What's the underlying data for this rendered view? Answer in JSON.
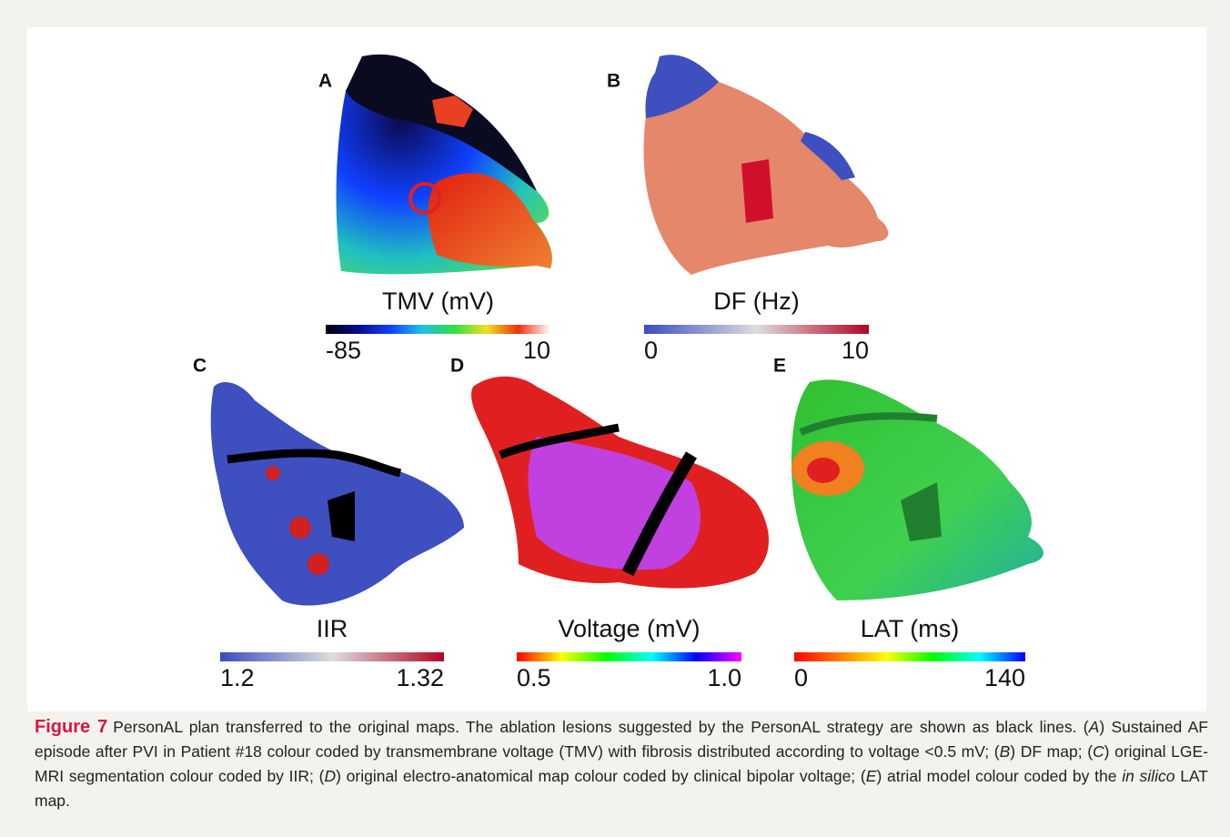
{
  "figure": {
    "panels": [
      {
        "letter": "A",
        "title": "TMV (mV)",
        "min": "-85",
        "max": "10",
        "colors": [
          "#000000",
          "#0a0a8c",
          "#1040ff",
          "#20c0e0",
          "#30e040",
          "#f0e020",
          "#f03010",
          "#ffffff"
        ]
      },
      {
        "letter": "B",
        "title": "DF (Hz)",
        "min": "0",
        "max": "10",
        "colors": [
          "#3b4cc0",
          "#dddddd",
          "#b40426"
        ]
      },
      {
        "letter": "C",
        "title": "IIR",
        "min": "1.2",
        "max": "1.32",
        "colors": [
          "#3b4cc0",
          "#dddddd",
          "#b40426"
        ]
      },
      {
        "letter": "D",
        "title": "Voltage (mV)",
        "min": "0.5",
        "max": "1.0",
        "colors": [
          "#ff0000",
          "#ffff00",
          "#00ff00",
          "#00ffff",
          "#0000ff",
          "#ff00ff"
        ]
      },
      {
        "letter": "E",
        "title": "LAT (ms)",
        "min": "0",
        "max": "140",
        "colors": [
          "#ff0000",
          "#ff8000",
          "#ffff00",
          "#00ff00",
          "#00ffff",
          "#0000ff"
        ]
      }
    ],
    "caption": {
      "label": "Figure 7",
      "parts": [
        {
          "text": "PersonAL plan transferred to the original maps. The ablation lesions suggested by the PersonAL strategy are shown as black lines. (",
          "italic": false
        },
        {
          "text": "A",
          "italic": true
        },
        {
          "text": ") Sustained AF episode after PVI in Patient #18 colour coded by transmembrane voltage (TMV) with fibrosis distributed according to voltage <0.5 mV; (",
          "italic": false
        },
        {
          "text": "B",
          "italic": true
        },
        {
          "text": ") DF map; (",
          "italic": false
        },
        {
          "text": "C",
          "italic": true
        },
        {
          "text": ") original LGE-MRI segmentation colour coded by IIR; (",
          "italic": false
        },
        {
          "text": "D",
          "italic": true
        },
        {
          "text": ") original electro-anatomical map colour coded by clinical bipolar voltage; (",
          "italic": false
        },
        {
          "text": "E",
          "italic": true
        },
        {
          "text": ") atrial model colour coded by the ",
          "italic": false
        },
        {
          "text": "in silico",
          "italic": true
        },
        {
          "text": " LAT map.",
          "italic": false
        }
      ]
    }
  }
}
